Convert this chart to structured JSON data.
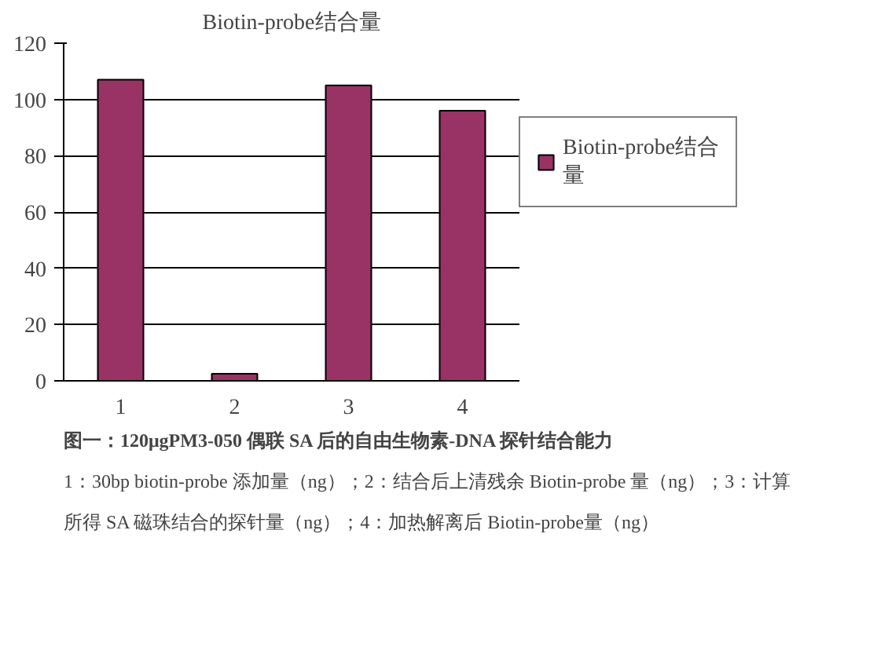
{
  "chart_data": {
    "type": "bar",
    "title": "Biotin-probe结合量",
    "categories": [
      "1",
      "2",
      "3",
      "4"
    ],
    "series": [
      {
        "name": "Biotin-probe结合量",
        "color": "#993366",
        "values": [
          107,
          2.5,
          105,
          96
        ]
      }
    ],
    "ylim": [
      0,
      120
    ],
    "yticks": [
      0,
      20,
      40,
      60,
      80,
      100,
      120
    ],
    "grid": "y",
    "legend": "right",
    "annotations": [
      "图一：120μgPM3-050 偶联 SA 后的自由生物素-DNA 探针结合能力",
      "1：30bp biotin-probe 添加量（ng）；2：结合后上清残余 Biotin-probe 量（ng）；3：计算所得 SA 磁珠结合的探针量（ng）；4：加热解离后 Biotin-probe量（ng）"
    ]
  }
}
